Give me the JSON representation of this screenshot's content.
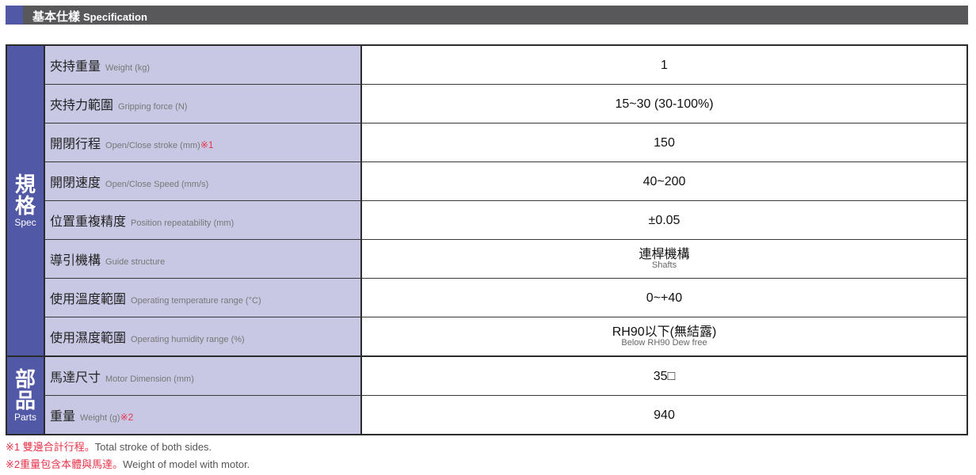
{
  "header": {
    "title_zh": "基本仕樣",
    "title_en": "Specification"
  },
  "groups": {
    "spec": {
      "zh": "規格",
      "en": "Spec"
    },
    "parts": {
      "zh": "部品",
      "en": "Parts"
    }
  },
  "rows": [
    {
      "zh": "夾持重量",
      "en": "Weight (kg)",
      "note": "",
      "value": "1",
      "sub": ""
    },
    {
      "zh": "夾持力範圍",
      "en": "Gripping force (N)",
      "note": "",
      "value": "15~30 (30-100%)",
      "sub": ""
    },
    {
      "zh": "開閉行程",
      "en": "Open/Close  stroke (mm)",
      "note": "※1",
      "value": "150",
      "sub": ""
    },
    {
      "zh": "開閉速度",
      "en": "Open/Close Speed (mm/s)",
      "note": "",
      "value": "40~200",
      "sub": ""
    },
    {
      "zh": "位置重複精度",
      "en": "Position repeatability (mm)",
      "note": "",
      "value": "±0.05",
      "sub": ""
    },
    {
      "zh": "導引機構",
      "en": "Guide structure",
      "note": "",
      "value": "連桿機構",
      "sub": "Shafts"
    },
    {
      "zh": "使用溫度範圍",
      "en": "Operating temperature range (°C)",
      "note": "",
      "value": "0~+40",
      "sub": ""
    },
    {
      "zh": "使用濕度範圍",
      "en": "Operating humidity range (%)",
      "note": "",
      "value": "RH90以下(無結露)",
      "sub": "Below RH90 Dew free"
    },
    {
      "zh": "馬達尺寸",
      "en": "Motor Dimension (mm)",
      "note": "",
      "value": "35□",
      "sub": ""
    },
    {
      "zh": "重量",
      "en": "Weight (g)",
      "note": "※2",
      "value": "940",
      "sub": ""
    }
  ],
  "footnotes": [
    {
      "red": "※1 雙邊合計行程。",
      "text": "Total stroke of both sides."
    },
    {
      "red": "※2重量包含本體與馬達。",
      "text": "Weight of model with motor."
    }
  ],
  "colors": {
    "group_bg": "#5158a6",
    "label_bg": "#c8c8e4",
    "header_bg": "#58585a",
    "note": "#e8344a"
  }
}
